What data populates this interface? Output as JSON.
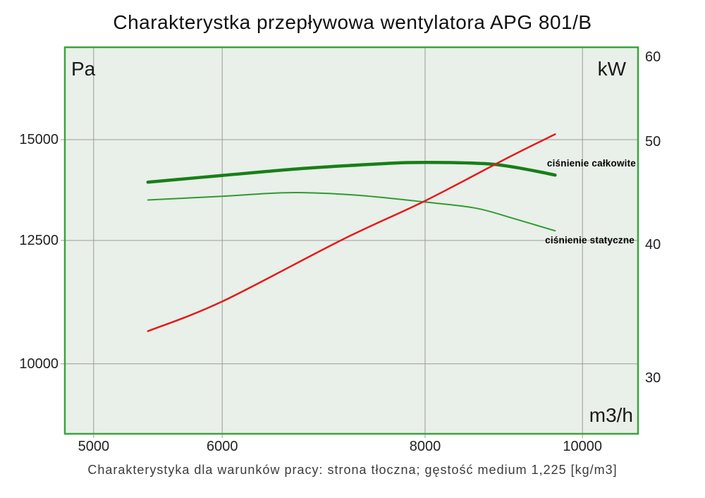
{
  "title": "Charakterystka przepływowa wentylatora APG 801/B",
  "caption": "Charakterystyka dla warunków pracy: strona tłoczna; gęstość medium 1,225 [kg/m3]",
  "colors": {
    "plot_background": "#e9efe9",
    "plot_border": "#3aa43a",
    "grid": "#9b9b9b",
    "total_pressure_line": "#177f17",
    "static_pressure_line": "#2f9b2f",
    "power_line": "#e31b1b"
  },
  "chart_data": {
    "type": "line",
    "title": "Charakterystka przepływowa wentylatora APG 801/B",
    "grid": true,
    "x_axis": {
      "label": "m3/h",
      "scale": "log",
      "min": 4800,
      "max": 10820,
      "ticks": [
        5000,
        6000,
        8000,
        10000
      ]
    },
    "y_axis_left": {
      "label": "Pa",
      "scale": "log",
      "min": 8810,
      "max": 17730,
      "ticks": [
        10000,
        12500,
        15000
      ]
    },
    "y_axis_right": {
      "label": "kW",
      "scale": "log",
      "min": 26.6,
      "max": 61.3,
      "ticks": [
        30,
        40,
        50,
        60
      ]
    },
    "series": [
      {
        "label": "ciśnienie całkowite",
        "axis": "left",
        "color": "#177f17",
        "width": 4.5,
        "points": [
          [
            5400,
            13890
          ],
          [
            6000,
            14060
          ],
          [
            6730,
            14240
          ],
          [
            7300,
            14330
          ],
          [
            7800,
            14390
          ],
          [
            8300,
            14390
          ],
          [
            8800,
            14350
          ],
          [
            9200,
            14230
          ],
          [
            9620,
            14070
          ]
        ]
      },
      {
        "label": "ciśnienie statyczne",
        "axis": "left",
        "color": "#2f9b2f",
        "width": 2,
        "points": [
          [
            5400,
            13450
          ],
          [
            6000,
            13540
          ],
          [
            6400,
            13610
          ],
          [
            6730,
            13630
          ],
          [
            7300,
            13560
          ],
          [
            8000,
            13400
          ],
          [
            8600,
            13250
          ],
          [
            9080,
            13000
          ],
          [
            9620,
            12720
          ]
        ]
      },
      {
        "axis": "right",
        "color": "#e31b1b",
        "width": 2.5,
        "points": [
          [
            5400,
            33.2
          ],
          [
            6000,
            35.4
          ],
          [
            7100,
            40.4
          ],
          [
            8000,
            44.0
          ],
          [
            9000,
            48.3
          ],
          [
            9620,
            50.8
          ]
        ]
      }
    ]
  }
}
